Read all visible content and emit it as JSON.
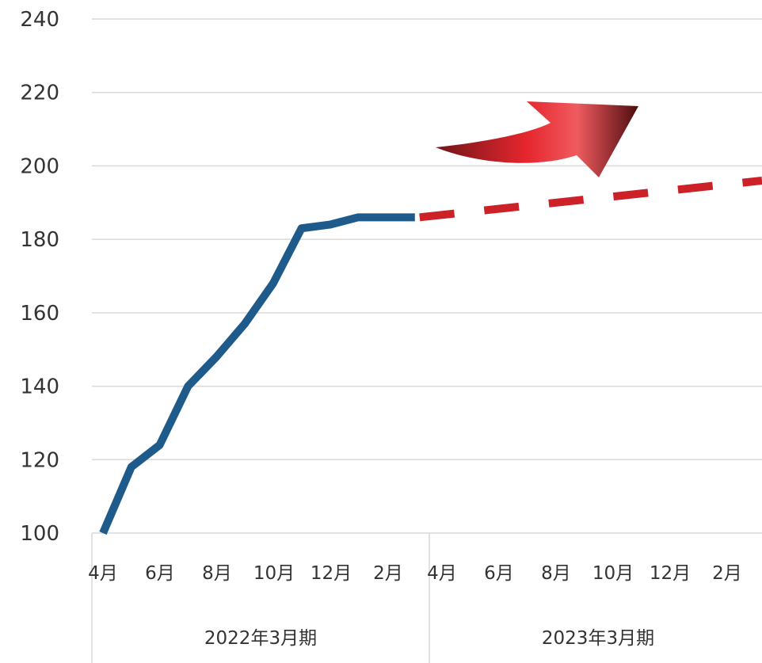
{
  "chart_data": {
    "type": "line",
    "title": "",
    "xlabel": "",
    "ylabel": "",
    "ylim": [
      100,
      240
    ],
    "y_ticks": [
      "100",
      "120",
      "140",
      "160",
      "180",
      "200",
      "220",
      "240"
    ],
    "grid": true,
    "x_tick_labels": [
      "4月",
      "6月",
      "8月",
      "10月",
      "12月",
      "2月",
      "4月",
      "6月",
      "8月",
      "10月",
      "12月",
      "2月"
    ],
    "groups": [
      {
        "label": "2022年3月期"
      },
      {
        "label": "2023年3月期"
      }
    ],
    "series": [
      {
        "style": "solid",
        "color": "#1f5b8a",
        "x": [
          "4月",
          "5月",
          "6月",
          "7月",
          "8月",
          "9月",
          "10月",
          "11月",
          "12月",
          "1月",
          "2月",
          "3月"
        ],
        "values": [
          100,
          118,
          124,
          140,
          148,
          157,
          168,
          183,
          184,
          186,
          186,
          186
        ]
      },
      {
        "style": "dashed",
        "color": "#cc2127",
        "x": [
          "3月",
          "3月"
        ],
        "values": [
          186,
          196
        ]
      }
    ],
    "annotation_arrow": {
      "icon": "upward-trend-arrow-icon",
      "color": "#d9262c"
    }
  }
}
